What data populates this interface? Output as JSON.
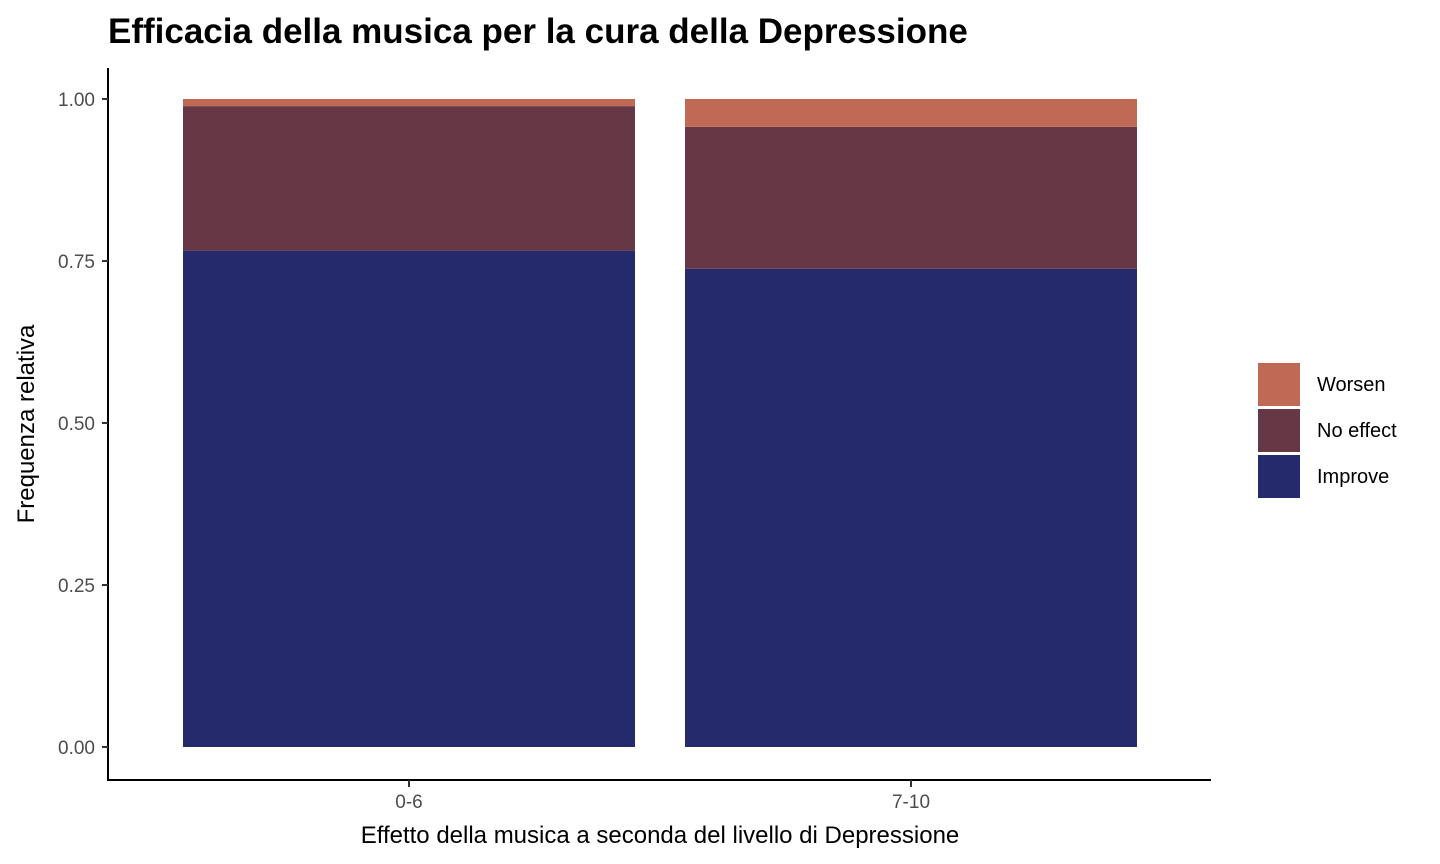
{
  "chart_data": {
    "type": "bar",
    "stacked": true,
    "title": "Efficacia della musica per la cura della Depressione",
    "xlabel": "Effetto della musica a seconda del livello di Depressione",
    "ylabel": "Frequenza relativa",
    "categories": [
      "0-6",
      "7-10"
    ],
    "series": [
      {
        "name": "Improve",
        "color": "#252a6c",
        "values": [
          0.766,
          0.738
        ]
      },
      {
        "name": "No effect",
        "color": "#663745",
        "values": [
          0.223,
          0.219
        ]
      },
      {
        "name": "Worsen",
        "color": "#c06a55",
        "values": [
          0.011,
          0.043
        ]
      }
    ],
    "ylim": [
      0,
      1
    ],
    "yticks": [
      0,
      0.25,
      0.5,
      0.75,
      1.0
    ],
    "ytick_labels": [
      "0.00",
      "0.25",
      "0.50",
      "0.75",
      "1.00"
    ],
    "grid": false,
    "legend_position": "right",
    "legend_order": [
      "Worsen",
      "No effect",
      "Improve"
    ]
  }
}
